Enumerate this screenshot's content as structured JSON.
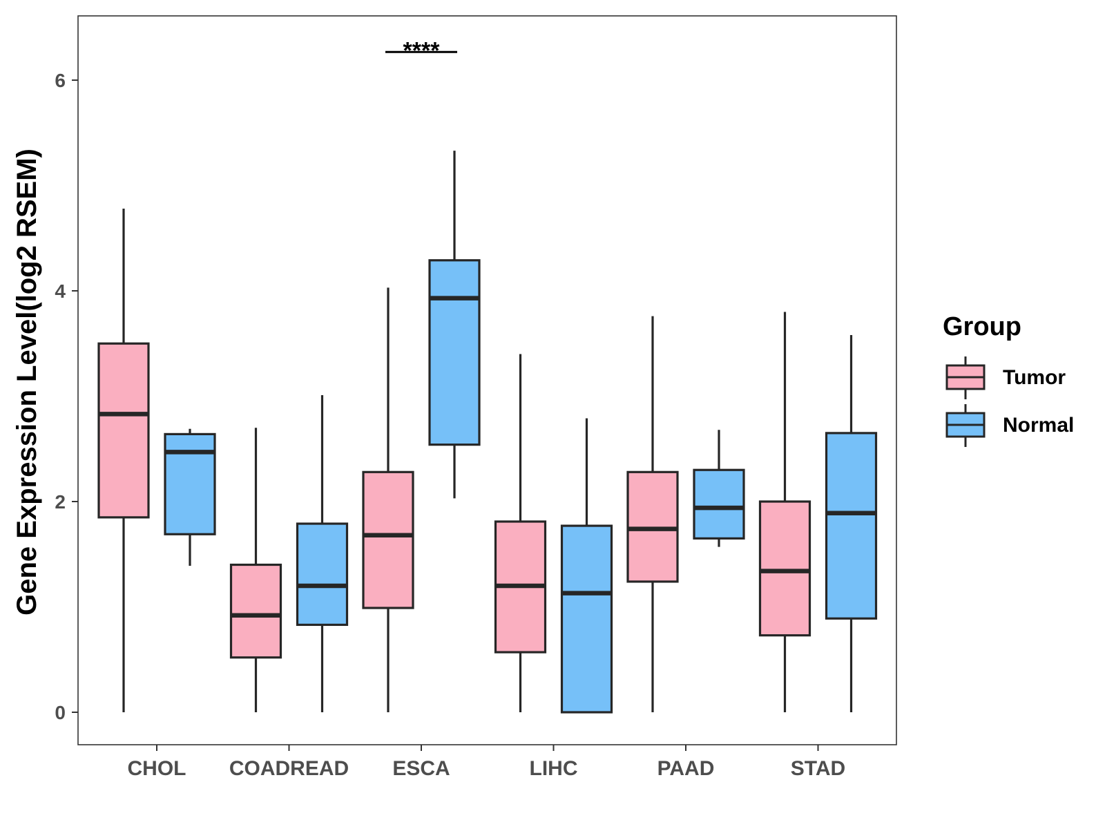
{
  "chart_data": {
    "type": "boxplot",
    "ylabel": "Gene Expression Level(log2 RSEM)",
    "xlabel": "",
    "ylim": [
      -0.3,
      6.6
    ],
    "yticks": [
      0,
      2,
      4,
      6
    ],
    "categories": [
      "CHOL",
      "COADREAD",
      "ESCA",
      "LIHC",
      "PAAD",
      "STAD"
    ],
    "legend": {
      "title": "Group",
      "position": "right",
      "entries": [
        {
          "name": "Tumor",
          "color": "#FAAFC0"
        },
        {
          "name": "Normal",
          "color": "#76C0F8"
        }
      ]
    },
    "series": [
      {
        "name": "Tumor",
        "color": "#FAAFC0",
        "boxes": [
          {
            "category": "CHOL",
            "whisker_low": 0.0,
            "q1": 1.85,
            "median": 2.83,
            "q3": 3.5,
            "whisker_high": 4.78
          },
          {
            "category": "COADREAD",
            "whisker_low": 0.0,
            "q1": 0.52,
            "median": 0.92,
            "q3": 1.4,
            "whisker_high": 2.7
          },
          {
            "category": "ESCA",
            "whisker_low": 0.0,
            "q1": 0.99,
            "median": 1.68,
            "q3": 2.28,
            "whisker_high": 4.03
          },
          {
            "category": "LIHC",
            "whisker_low": 0.0,
            "q1": 0.57,
            "median": 1.2,
            "q3": 1.81,
            "whisker_high": 3.4
          },
          {
            "category": "PAAD",
            "whisker_low": 0.0,
            "q1": 1.24,
            "median": 1.74,
            "q3": 2.28,
            "whisker_high": 3.76
          },
          {
            "category": "STAD",
            "whisker_low": 0.0,
            "q1": 0.73,
            "median": 1.34,
            "q3": 2.0,
            "whisker_high": 3.8
          }
        ]
      },
      {
        "name": "Normal",
        "color": "#76C0F8",
        "boxes": [
          {
            "category": "CHOL",
            "whisker_low": 1.39,
            "q1": 1.69,
            "median": 2.47,
            "q3": 2.64,
            "whisker_high": 2.69
          },
          {
            "category": "COADREAD",
            "whisker_low": 0.0,
            "q1": 0.83,
            "median": 1.2,
            "q3": 1.79,
            "whisker_high": 3.01
          },
          {
            "category": "ESCA",
            "whisker_low": 2.03,
            "q1": 2.54,
            "median": 3.93,
            "q3": 4.29,
            "whisker_high": 5.33
          },
          {
            "category": "LIHC",
            "whisker_low": 0.0,
            "q1": 0.0,
            "median": 1.13,
            "q3": 1.77,
            "whisker_high": 2.79
          },
          {
            "category": "PAAD",
            "whisker_low": 1.57,
            "q1": 1.65,
            "median": 1.94,
            "q3": 2.3,
            "whisker_high": 2.68
          },
          {
            "category": "STAD",
            "whisker_low": 0.0,
            "q1": 0.89,
            "median": 1.89,
            "q3": 2.65,
            "whisker_high": 3.58
          }
        ]
      }
    ],
    "annotations": [
      {
        "category": "ESCA",
        "text": "****",
        "y": 6.3
      }
    ]
  }
}
